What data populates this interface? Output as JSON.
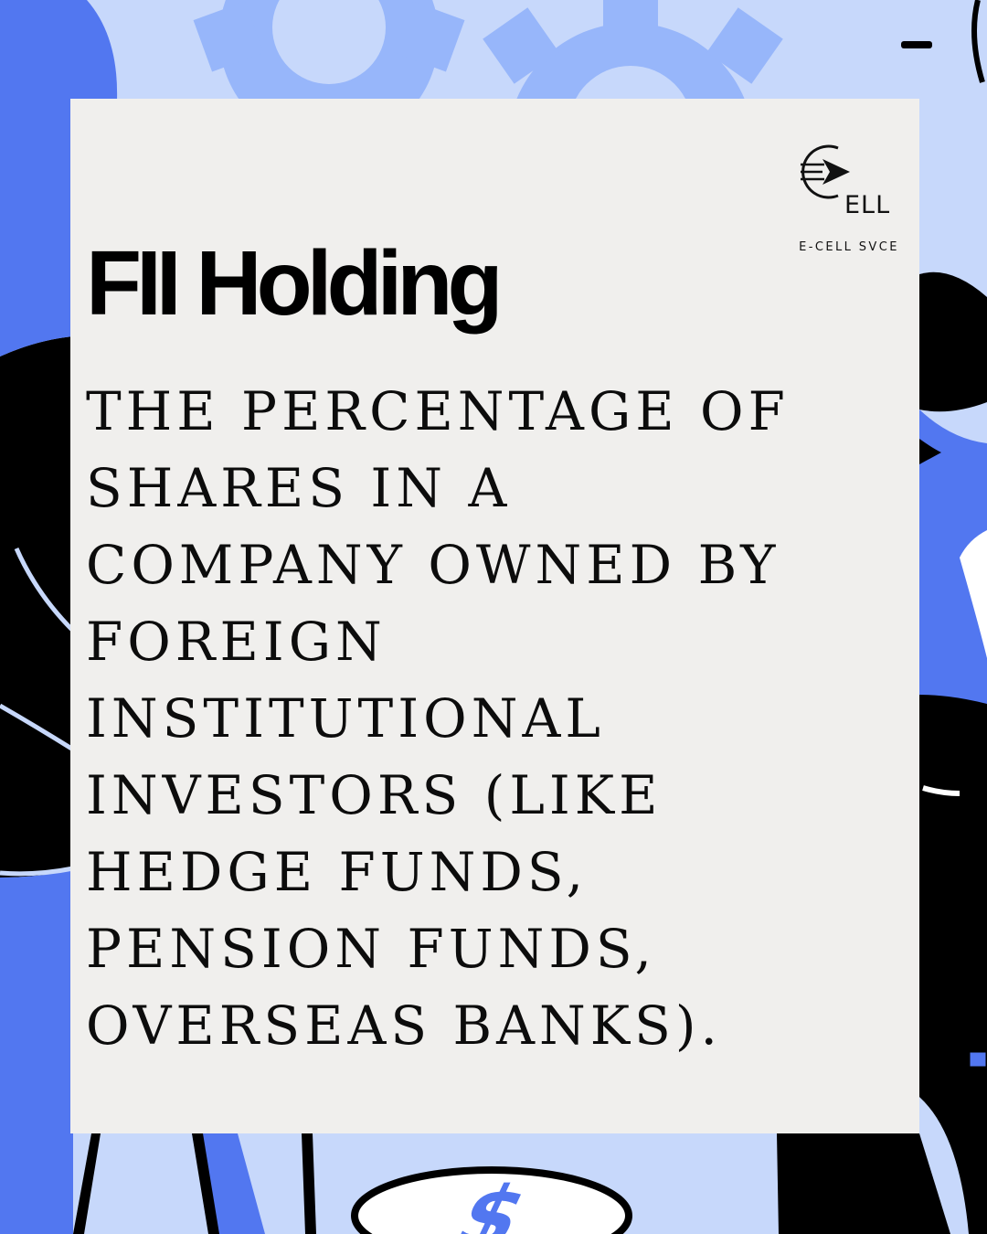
{
  "logo": {
    "wordmark": "ELL",
    "caption": "E-CELL SVCE"
  },
  "title": "FII Holding",
  "definition": "The percentage of\nshares in a\ncompany owned by\nforeign\ninstitutional\ninvestors (like\nhedge funds,\npension funds,\noverseas banks).",
  "colors": {
    "background": "#c7d8fb",
    "card": "#f0efed",
    "accent_blue": "#5277f0",
    "gear_blue": "#97b6fa",
    "ink": "#000000"
  },
  "icons": [
    "gear-icon",
    "coin-icon",
    "dollar-icon",
    "arrow-icon"
  ]
}
